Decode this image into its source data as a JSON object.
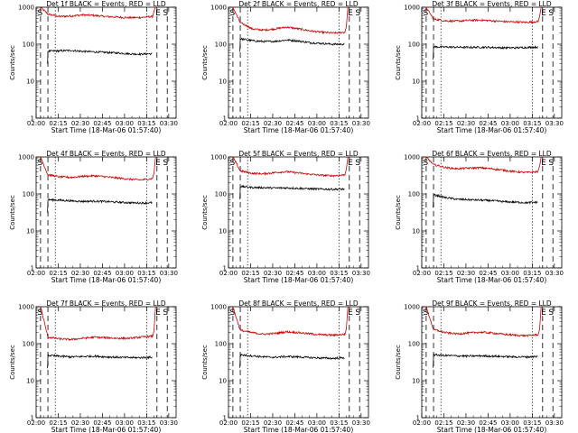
{
  "chart_data": [
    {
      "type": "line",
      "title": "Det 1f BLACK = Events, RED = LLD",
      "xlabel": "Start Time (18-Mar-06 01:57:40)",
      "ylabel": "Counts/sec",
      "yscale": "log",
      "ylim": [
        1,
        1000
      ],
      "xlim": [
        "02:00",
        "03:35"
      ],
      "x_ticks": [
        "02:00",
        "02:15",
        "02:30",
        "02:45",
        "03:00",
        "03:15",
        "03:30"
      ],
      "y_ticks": [
        "1",
        "10",
        "100",
        "1000"
      ],
      "markers": {
        "start": "S",
        "end": "E"
      },
      "series": [
        {
          "color": "#000000",
          "values": [
            65,
            66,
            68,
            64,
            62,
            60,
            58,
            55,
            54,
            55
          ]
        },
        {
          "color": "#cc0000",
          "values": [
            650,
            560,
            580,
            620,
            600,
            560,
            540,
            520,
            530,
            560
          ]
        }
      ]
    },
    {
      "type": "line",
      "title": "Det 2f BLACK = Events, RED = LLD",
      "xlabel": "Start Time (18-Mar-06 01:57:40)",
      "ylabel": "Counts/sec",
      "yscale": "log",
      "ylim": [
        1,
        1000
      ],
      "xlim": [
        "02:00",
        "03:35"
      ],
      "x_ticks": [
        "02:00",
        "02:15",
        "02:30",
        "02:45",
        "03:00",
        "03:15",
        "03:30"
      ],
      "y_ticks": [
        "1",
        "10",
        "100",
        "1000"
      ],
      "markers": {
        "start": "S",
        "end": "E"
      },
      "series": [
        {
          "color": "#000000",
          "values": [
            140,
            125,
            118,
            120,
            130,
            122,
            110,
            105,
            100,
            100
          ]
        },
        {
          "color": "#cc0000",
          "values": [
            380,
            260,
            240,
            260,
            290,
            260,
            230,
            210,
            200,
            210
          ]
        }
      ]
    },
    {
      "type": "line",
      "title": "Det 3f BLACK = Events, RED = LLD",
      "xlabel": "Start Time (18-Mar-06 01:57:40)",
      "ylabel": "Counts/sec",
      "yscale": "log",
      "ylim": [
        1,
        1000
      ],
      "xlim": [
        "02:00",
        "03:35"
      ],
      "x_ticks": [
        "02:00",
        "02:15",
        "02:30",
        "02:45",
        "03:00",
        "03:15",
        "03:30"
      ],
      "y_ticks": [
        "1",
        "10",
        "100",
        "1000"
      ],
      "markers": {
        "start": "S",
        "end": "E"
      },
      "series": [
        {
          "color": "#000000",
          "values": [
            85,
            84,
            83,
            82,
            83,
            82,
            80,
            80,
            82,
            84
          ]
        },
        {
          "color": "#cc0000",
          "values": [
            480,
            430,
            420,
            440,
            450,
            430,
            410,
            400,
            390,
            410
          ]
        }
      ]
    },
    {
      "type": "line",
      "title": "Det 4f BLACK = Events, RED = LLD",
      "xlabel": "Start Time (18-Mar-06 01:57:40)",
      "ylabel": "Counts/sec",
      "yscale": "log",
      "ylim": [
        1,
        1000
      ],
      "xlim": [
        "02:00",
        "03:35"
      ],
      "x_ticks": [
        "02:00",
        "02:15",
        "02:30",
        "02:45",
        "03:00",
        "03:15",
        "03:30"
      ],
      "y_ticks": [
        "1",
        "10",
        "100",
        "1000"
      ],
      "markers": {
        "start": "S",
        "end": "E"
      },
      "series": [
        {
          "color": "#000000",
          "values": [
            70,
            68,
            65,
            63,
            64,
            62,
            60,
            58,
            57,
            58
          ]
        },
        {
          "color": "#cc0000",
          "values": [
            330,
            290,
            280,
            300,
            310,
            290,
            270,
            250,
            240,
            260
          ]
        }
      ]
    },
    {
      "type": "line",
      "title": "Det 5f BLACK = Events, RED = LLD",
      "xlabel": "Start Time (18-Mar-06 01:57:40)",
      "ylabel": "Counts/sec",
      "yscale": "log",
      "ylim": [
        1,
        1000
      ],
      "xlim": [
        "02:00",
        "03:35"
      ],
      "x_ticks": [
        "02:00",
        "02:15",
        "02:30",
        "02:45",
        "03:00",
        "03:15",
        "03:30"
      ],
      "y_ticks": [
        "1",
        "10",
        "100",
        "1000"
      ],
      "markers": {
        "start": "S",
        "end": "E"
      },
      "series": [
        {
          "color": "#000000",
          "values": [
            160,
            150,
            148,
            145,
            146,
            142,
            138,
            135,
            134,
            135
          ]
        },
        {
          "color": "#cc0000",
          "values": [
            420,
            360,
            350,
            380,
            400,
            370,
            340,
            320,
            310,
            330
          ]
        }
      ]
    },
    {
      "type": "line",
      "title": "Det 6f BLACK = Events, RED = LLD",
      "xlabel": "Start Time (18-Mar-06 01:57:40)",
      "ylabel": "Counts/sec",
      "yscale": "log",
      "ylim": [
        1,
        1000
      ],
      "xlim": [
        "02:00",
        "03:35"
      ],
      "x_ticks": [
        "02:00",
        "02:15",
        "02:30",
        "02:45",
        "03:00",
        "03:15",
        "03:30"
      ],
      "y_ticks": [
        "1",
        "10",
        "100",
        "1000"
      ],
      "markers": {
        "start": "S",
        "end": "E"
      },
      "series": [
        {
          "color": "#000000",
          "values": [
            95,
            80,
            72,
            70,
            68,
            66,
            62,
            60,
            58,
            60
          ]
        },
        {
          "color": "#cc0000",
          "values": [
            620,
            520,
            480,
            500,
            510,
            480,
            440,
            400,
            380,
            400
          ]
        }
      ]
    },
    {
      "type": "line",
      "title": "Det 7f BLACK = Events, RED = LLD",
      "xlabel": "Start Time (18-Mar-06 01:57:40)",
      "ylabel": "Counts/sec",
      "yscale": "log",
      "ylim": [
        1,
        1000
      ],
      "xlim": [
        "02:00",
        "03:35"
      ],
      "x_ticks": [
        "02:00",
        "02:15",
        "02:30",
        "02:45",
        "03:00",
        "03:15",
        "03:30"
      ],
      "y_ticks": [
        "1",
        "10",
        "100",
        "1000"
      ],
      "markers": {
        "start": "S",
        "end": "E"
      },
      "series": [
        {
          "color": "#000000",
          "values": [
            48,
            46,
            44,
            45,
            46,
            44,
            43,
            42,
            42,
            43
          ]
        },
        {
          "color": "#cc0000",
          "values": [
            150,
            135,
            130,
            140,
            150,
            145,
            140,
            140,
            150,
            160
          ]
        }
      ]
    },
    {
      "type": "line",
      "title": "Det 8f BLACK = Events, RED = LLD",
      "xlabel": "Start Time (18-Mar-06 01:57:40)",
      "ylabel": "Counts/sec",
      "yscale": "log",
      "ylim": [
        1,
        1000
      ],
      "xlim": [
        "02:00",
        "03:35"
      ],
      "x_ticks": [
        "02:00",
        "02:15",
        "02:30",
        "02:45",
        "03:00",
        "03:15",
        "03:30"
      ],
      "y_ticks": [
        "1",
        "10",
        "100",
        "1000"
      ],
      "markers": {
        "start": "S",
        "end": "E"
      },
      "series": [
        {
          "color": "#000000",
          "values": [
            50,
            47,
            44,
            43,
            45,
            44,
            42,
            41,
            40,
            42
          ]
        },
        {
          "color": "#cc0000",
          "values": [
            230,
            200,
            180,
            190,
            210,
            200,
            185,
            175,
            170,
            180
          ]
        }
      ]
    },
    {
      "type": "line",
      "title": "Det 9f BLACK = Events, RED = LLD",
      "xlabel": "Start Time (18-Mar-06 01:57:40)",
      "ylabel": "Counts/sec",
      "yscale": "log",
      "ylim": [
        1,
        1000
      ],
      "xlim": [
        "02:00",
        "03:35"
      ],
      "x_ticks": [
        "02:00",
        "02:15",
        "02:30",
        "02:45",
        "03:00",
        "03:15",
        "03:30"
      ],
      "y_ticks": [
        "1",
        "10",
        "100",
        "1000"
      ],
      "markers": {
        "start": "S",
        "end": "E"
      },
      "series": [
        {
          "color": "#000000",
          "values": [
            50,
            48,
            47,
            46,
            47,
            46,
            45,
            44,
            44,
            45
          ]
        },
        {
          "color": "#cc0000",
          "values": [
            240,
            200,
            185,
            195,
            205,
            195,
            180,
            170,
            165,
            175
          ]
        }
      ]
    }
  ]
}
